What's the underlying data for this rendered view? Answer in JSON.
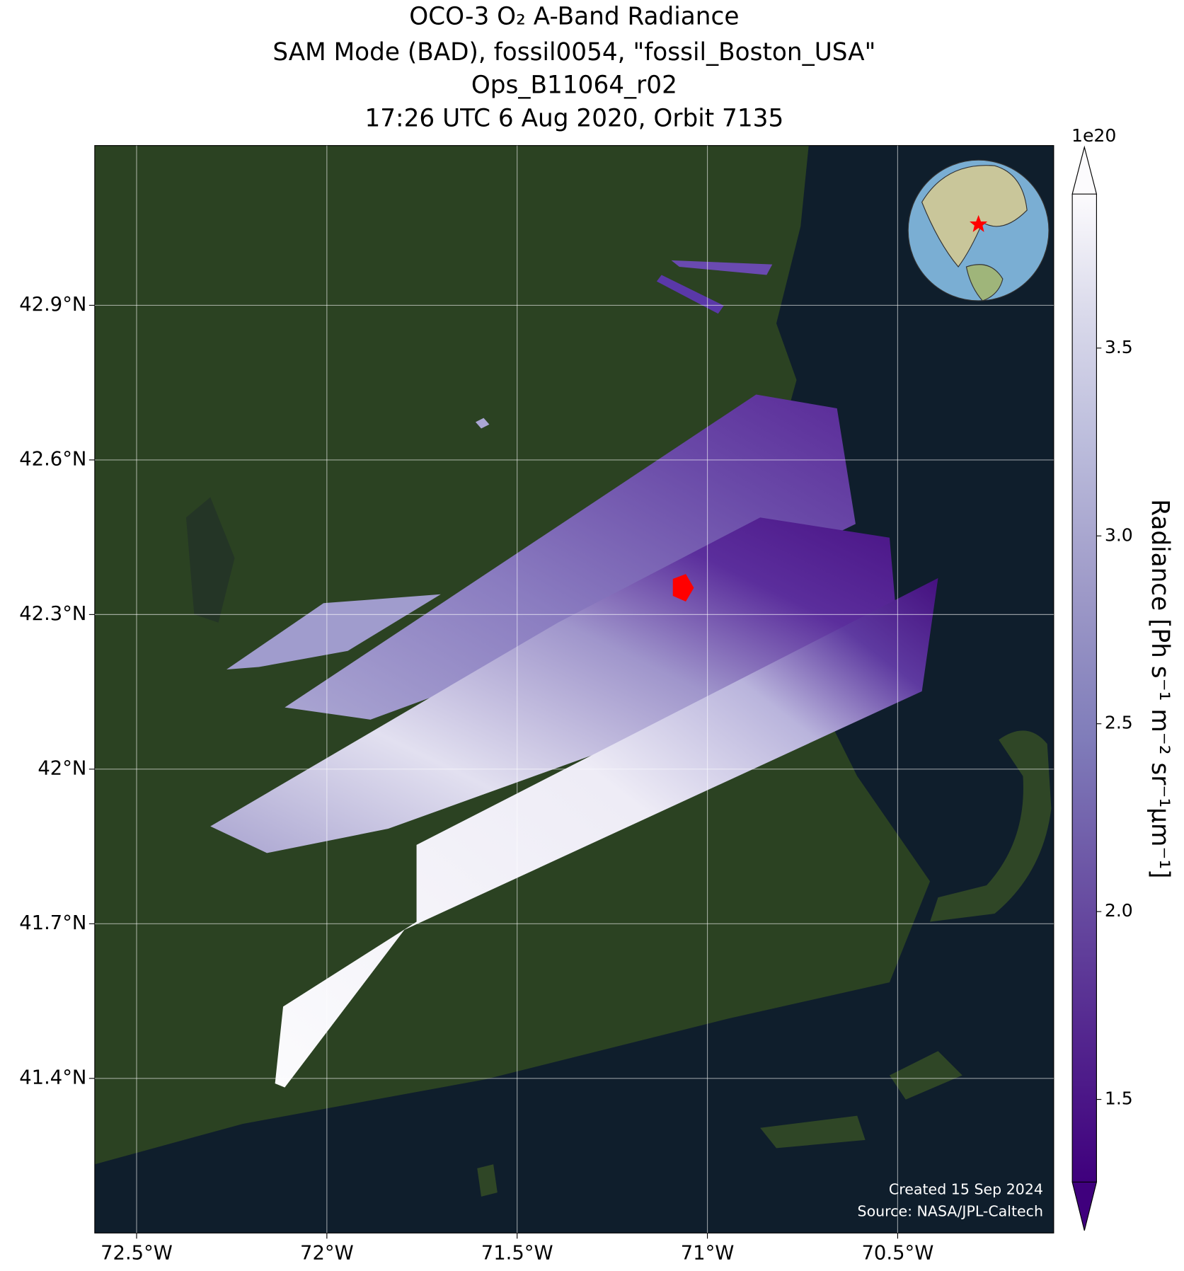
{
  "title": [
    "OCO-3 O₂ A-Band Radiance",
    "SAM Mode (BAD), fossil0054, \"fossil_Boston_USA\"",
    "Ops_B11064_r02",
    "17:26 UTC 6 Aug 2020, Orbit 7135"
  ],
  "map": {
    "xlim": [
      -72.61,
      -70.09
    ],
    "ylim": [
      41.1,
      43.21
    ],
    "xticks": [
      {
        "value": -72.5,
        "label": "72.5°W"
      },
      {
        "value": -72,
        "label": "72°W"
      },
      {
        "value": -71.5,
        "label": "71.5°W"
      },
      {
        "value": -71,
        "label": "71°W"
      },
      {
        "value": -70.5,
        "label": "70.5°W"
      }
    ],
    "yticks": [
      {
        "value": 41.4,
        "label": "41.4°N"
      },
      {
        "value": 41.7,
        "label": "41.7°N"
      },
      {
        "value": 42,
        "label": "42°N"
      },
      {
        "value": 42.3,
        "label": "42.3°N"
      },
      {
        "value": 42.6,
        "label": "42.6°N"
      },
      {
        "value": 42.9,
        "label": "42.9°N"
      }
    ],
    "grid": true
  },
  "colorbar": {
    "label": "Radiance [Ph s⁻¹ m⁻² sr⁻¹μm⁻¹]",
    "offset": "1e20",
    "lim": [
      1.28,
      3.91
    ],
    "ticks": [
      1.5,
      {
        "value": 2,
        "label": "2.0"
      },
      2.5,
      {
        "value": 3,
        "label": "3.0"
      },
      3.5
    ]
  },
  "credits": [
    "Created 15 Sep 2024",
    "Source: NASA/JPL-Caltech"
  ]
}
